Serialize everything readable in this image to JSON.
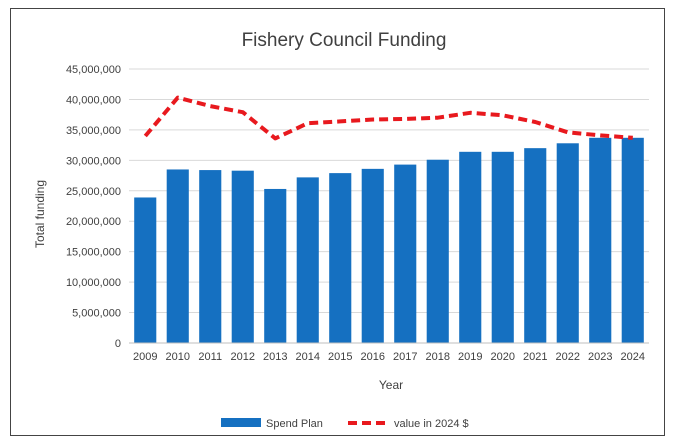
{
  "chart_data": {
    "type": "bar",
    "title": "Fishery Council Funding",
    "xlabel": "Year",
    "ylabel": "Total funding",
    "ylim": [
      0,
      45000000
    ],
    "yticks": [
      0,
      5000000,
      10000000,
      15000000,
      20000000,
      25000000,
      30000000,
      35000000,
      40000000,
      45000000
    ],
    "ytick_labels": [
      "0",
      "5,000,000",
      "10,000,000",
      "15,000,000",
      "20,000,000",
      "25,000,000",
      "30,000,000",
      "35,000,000",
      "40,000,000",
      "45,000,000"
    ],
    "categories": [
      "2009",
      "2010",
      "2011",
      "2012",
      "2013",
      "2014",
      "2015",
      "2016",
      "2017",
      "2018",
      "2019",
      "2020",
      "2021",
      "2022",
      "2023",
      "2024"
    ],
    "grid": true,
    "legend_position": "bottom",
    "series": [
      {
        "name": "Spend Plan",
        "kind": "bar",
        "color": "#1570C1",
        "values": [
          23900000,
          28500000,
          28400000,
          28300000,
          25300000,
          27200000,
          27900000,
          28600000,
          29300000,
          30100000,
          31400000,
          31400000,
          32000000,
          32800000,
          33700000,
          33700000
        ]
      },
      {
        "name": "value in 2024 $",
        "kind": "line",
        "style": "dashed",
        "color": "#E8191E",
        "values": [
          34000000,
          40300000,
          38900000,
          37900000,
          33600000,
          36100000,
          36400000,
          36700000,
          36800000,
          37000000,
          37800000,
          37400000,
          36300000,
          34600000,
          34100000,
          33700000
        ]
      }
    ]
  }
}
